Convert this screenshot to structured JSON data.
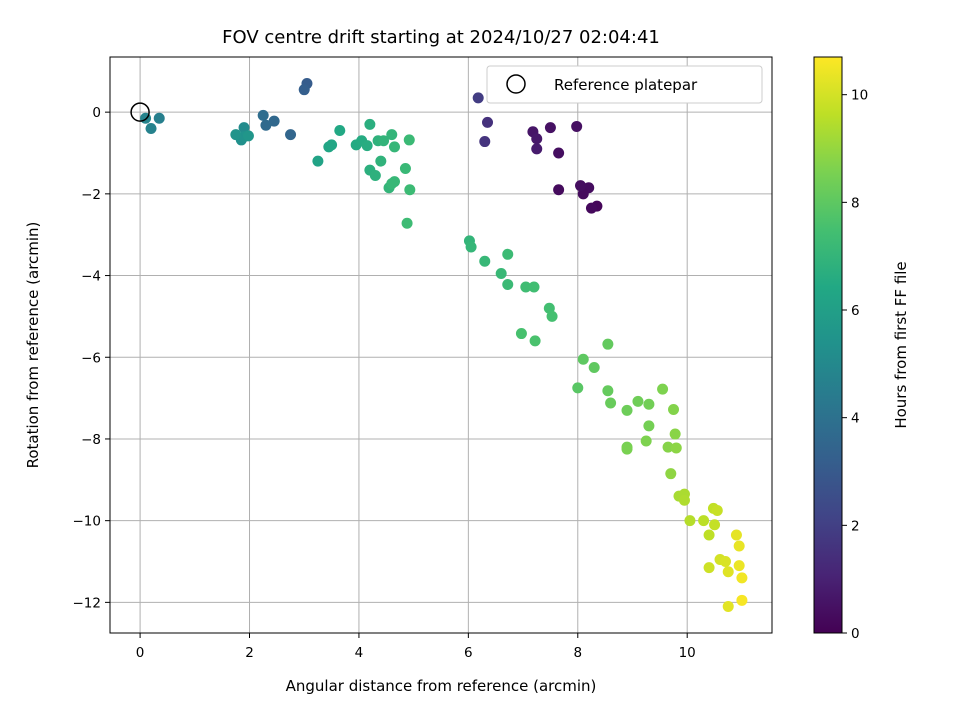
{
  "chart_data": {
    "type": "scatter",
    "title": "FOV centre drift starting at 2024/10/27 02:04:41",
    "xlabel": "Angular distance from reference (arcmin)",
    "ylabel": "Rotation from reference (arcmin)",
    "xlim": [
      -0.55,
      11.55
    ],
    "ylim": [
      -12.75,
      1.35
    ],
    "xticks": [
      0,
      2,
      4,
      6,
      8,
      10
    ],
    "yticks": [
      0,
      -2,
      -4,
      -6,
      -8,
      -10,
      -12
    ],
    "grid": true,
    "legend": {
      "position": "top-right",
      "entries": [
        "Reference platepar"
      ]
    },
    "reference_point": {
      "x": 0,
      "y": 0
    },
    "colorbar": {
      "label": "Hours from first FF file",
      "range": [
        0,
        10.7
      ],
      "ticks": [
        0,
        2,
        4,
        6,
        8,
        10
      ],
      "colormap": "viridis"
    },
    "points": [
      [
        8.35,
        -2.3,
        0.15
      ],
      [
        8.25,
        -2.35,
        0.25
      ],
      [
        8.2,
        -1.85,
        0.35
      ],
      [
        8.1,
        -2.0,
        0.3
      ],
      [
        8.05,
        -1.8,
        0.4
      ],
      [
        7.65,
        -1.9,
        0.3
      ],
      [
        7.65,
        -1.0,
        0.4
      ],
      [
        7.98,
        -0.35,
        0.45
      ],
      [
        7.5,
        -0.38,
        0.5
      ],
      [
        7.18,
        -0.48,
        0.6
      ],
      [
        7.25,
        -0.65,
        0.7
      ],
      [
        7.25,
        -0.9,
        0.8
      ],
      [
        6.35,
        -0.25,
        1.5
      ],
      [
        6.3,
        -0.72,
        1.6
      ],
      [
        6.18,
        0.35,
        1.9
      ],
      [
        3.05,
        0.7,
        3.1
      ],
      [
        3.0,
        0.55,
        3.2
      ],
      [
        2.75,
        -0.55,
        3.5
      ],
      [
        2.45,
        -0.22,
        3.6
      ],
      [
        2.3,
        -0.32,
        3.7
      ],
      [
        2.25,
        -0.08,
        3.8
      ],
      [
        0.35,
        -0.15,
        4.6
      ],
      [
        0.2,
        -0.4,
        4.7
      ],
      [
        0.1,
        -0.15,
        4.8
      ],
      [
        1.9,
        -0.38,
        5.1
      ],
      [
        1.85,
        -0.68,
        5.3
      ],
      [
        1.9,
        -0.6,
        5.4
      ],
      [
        1.75,
        -0.55,
        5.5
      ],
      [
        1.98,
        -0.58,
        5.6
      ],
      [
        3.25,
        -1.2,
        6.2
      ],
      [
        3.45,
        -0.85,
        6.3
      ],
      [
        3.5,
        -0.8,
        6.35
      ],
      [
        3.65,
        -0.45,
        6.4
      ],
      [
        3.95,
        -0.8,
        6.5
      ],
      [
        4.05,
        -0.7,
        6.55
      ],
      [
        4.15,
        -0.82,
        6.6
      ],
      [
        4.2,
        -0.3,
        6.7
      ],
      [
        4.2,
        -1.42,
        6.75
      ],
      [
        4.3,
        -1.55,
        6.8
      ],
      [
        4.35,
        -0.7,
        6.85
      ],
      [
        4.4,
        -1.2,
        6.9
      ],
      [
        4.45,
        -0.7,
        6.95
      ],
      [
        4.55,
        -1.85,
        7.0
      ],
      [
        4.6,
        -0.55,
        7.0
      ],
      [
        4.65,
        -0.85,
        7.05
      ],
      [
        4.65,
        -1.7,
        7.1
      ],
      [
        4.6,
        -1.75,
        7.1
      ],
      [
        4.85,
        -1.38,
        7.15
      ],
      [
        4.92,
        -0.68,
        7.2
      ],
      [
        4.93,
        -1.9,
        7.25
      ],
      [
        4.88,
        -2.72,
        7.3
      ],
      [
        6.02,
        -3.15,
        7.0
      ],
      [
        6.05,
        -3.3,
        7.05
      ],
      [
        6.3,
        -3.65,
        7.1
      ],
      [
        6.6,
        -3.95,
        7.15
      ],
      [
        6.72,
        -4.22,
        7.2
      ],
      [
        6.72,
        -3.48,
        7.25
      ],
      [
        7.05,
        -4.28,
        7.35
      ],
      [
        7.2,
        -4.28,
        7.4
      ],
      [
        7.48,
        -4.8,
        7.45
      ],
      [
        7.53,
        -5.0,
        7.5
      ],
      [
        6.97,
        -5.42,
        7.55
      ],
      [
        7.22,
        -5.6,
        7.6
      ],
      [
        8.0,
        -6.75,
        7.9
      ],
      [
        8.1,
        -6.05,
        8.0
      ],
      [
        8.3,
        -6.25,
        8.05
      ],
      [
        8.55,
        -5.68,
        8.1
      ],
      [
        8.55,
        -6.82,
        8.15
      ],
      [
        8.6,
        -7.12,
        8.2
      ],
      [
        8.9,
        -7.3,
        8.3
      ],
      [
        9.1,
        -7.08,
        8.35
      ],
      [
        9.3,
        -7.15,
        8.4
      ],
      [
        9.3,
        -7.68,
        8.45
      ],
      [
        8.9,
        -8.2,
        8.5
      ],
      [
        8.9,
        -8.25,
        8.55
      ],
      [
        9.25,
        -8.05,
        8.6
      ],
      [
        9.55,
        -6.78,
        8.6
      ],
      [
        9.75,
        -7.28,
        8.7
      ],
      [
        9.65,
        -8.2,
        8.75
      ],
      [
        9.78,
        -7.88,
        8.8
      ],
      [
        9.8,
        -8.22,
        8.85
      ],
      [
        9.7,
        -8.85,
        8.9
      ],
      [
        9.85,
        -9.4,
        9.3
      ],
      [
        9.95,
        -9.35,
        9.35
      ],
      [
        9.95,
        -9.5,
        9.4
      ],
      [
        10.05,
        -10.0,
        9.5
      ],
      [
        10.3,
        -10.0,
        9.6
      ],
      [
        10.4,
        -10.35,
        9.65
      ],
      [
        10.48,
        -9.7,
        9.7
      ],
      [
        10.5,
        -10.1,
        9.75
      ],
      [
        10.55,
        -9.75,
        9.8
      ],
      [
        10.4,
        -11.15,
        9.9
      ],
      [
        10.6,
        -10.95,
        10.0
      ],
      [
        10.7,
        -11.0,
        10.1
      ],
      [
        10.75,
        -11.25,
        10.2
      ],
      [
        10.75,
        -12.1,
        10.25
      ],
      [
        10.9,
        -10.35,
        10.3
      ],
      [
        10.95,
        -10.62,
        10.35
      ],
      [
        10.95,
        -11.1,
        10.4
      ],
      [
        11.0,
        -11.4,
        10.5
      ],
      [
        11.0,
        -11.95,
        10.6
      ]
    ]
  }
}
